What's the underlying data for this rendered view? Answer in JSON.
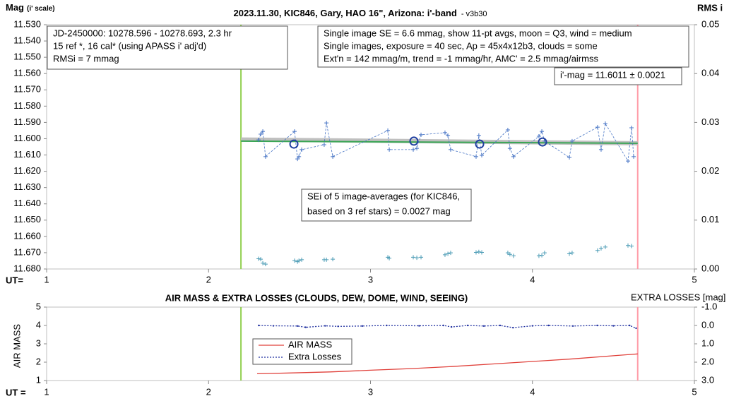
{
  "chart_data": [
    {
      "type": "line",
      "title": "2023.11.30, KIC846, Gary, HAO 16\", Arizona: i'-band",
      "subtitle": "- v3b30",
      "ylabel": "Mag",
      "ylabel_note": "(i' scale)",
      "y2label": "RMS i",
      "xlabel": "UT=",
      "xlim": [
        1,
        5
      ],
      "xticks": [
        1,
        2,
        3,
        4,
        5
      ],
      "ylim": [
        11.68,
        11.53
      ],
      "yticks": [
        {
          "value": 11.53,
          "label": "11.530"
        },
        {
          "value": 11.54,
          "label": "11.540"
        },
        {
          "value": 11.55,
          "label": "11.550"
        },
        {
          "value": 11.56,
          "label": "11.560"
        },
        {
          "value": 11.57,
          "label": "11.570"
        },
        {
          "value": 11.58,
          "label": "11.580"
        },
        {
          "value": 11.59,
          "label": "11.590"
        },
        {
          "value": 11.6,
          "label": "11.600"
        },
        {
          "value": 11.61,
          "label": "11.610"
        },
        {
          "value": 11.62,
          "label": "11.620"
        },
        {
          "value": 11.63,
          "label": "11.630"
        },
        {
          "value": 11.64,
          "label": "11.640"
        },
        {
          "value": 11.65,
          "label": "11.650"
        },
        {
          "value": 11.66,
          "label": "11.660"
        },
        {
          "value": 11.67,
          "label": "11.670"
        },
        {
          "value": 11.68,
          "label": "11.680"
        }
      ],
      "y2lim": [
        0,
        0.05
      ],
      "y2ticks": [
        {
          "value": 0,
          "label": "0.00"
        },
        {
          "value": 0.01,
          "label": "0.01"
        },
        {
          "value": 0.02,
          "label": "0.02"
        },
        {
          "value": 0.03,
          "label": "0.03"
        },
        {
          "value": 0.04,
          "label": "0.04"
        },
        {
          "value": 0.05,
          "label": "0.05"
        }
      ],
      "vlines": [
        2.2,
        4.65
      ],
      "vline_colors": [
        "#92d050",
        "#ff9ca8"
      ],
      "annotations": [
        {
          "lines": [
            "JD-2450000: 10278.596 - 10278.693, 2.3  hr",
            "15 ref *, 16 cal* (using APASS i' adj'd)",
            "RMSi = 7 mmag"
          ]
        },
        {
          "lines": [
            "Single image SE = 6.6 mmag, show 11-pt avgs, moon = Q3, wind = medium",
            "Single images, exposure = 40 sec, Ap = 45x4x12b3, clouds = some",
            "Ext'n = 142 mmag/m, trend = -1 mmag/hr, AMC' = 2.5 mmag/airmss"
          ]
        },
        {
          "lines": [
            "i'-mag = 11.6011 ± 0.0021"
          ]
        },
        {
          "lines": [
            "SEi of 5 image-averages (for KIC846,",
            "based on 3 ref stars) = 0.0027 mag"
          ]
        }
      ],
      "series": [
        {
          "style": "band",
          "color": "#bfbfbf",
          "x": [
            2.2,
            4.65
          ],
          "values": [
            11.6005,
            11.6028
          ]
        },
        {
          "style": "solid",
          "color": "#3aa655",
          "x": [
            2.2,
            4.65
          ],
          "values": [
            11.6015,
            11.6028
          ]
        },
        {
          "style": "dashed-crosses",
          "color": "#4472c4",
          "x": [
            2.309,
            2.322,
            2.335,
            2.352,
            2.531,
            2.549,
            2.558,
            2.575,
            2.714,
            2.728,
            2.767,
            3.107,
            3.116,
            3.264,
            3.286,
            3.312,
            3.46,
            3.478,
            3.495,
            3.652,
            3.669,
            3.687,
            3.848,
            3.861,
            3.883,
            4.04,
            4.058,
            4.075,
            4.228,
            4.245,
            4.402,
            4.424,
            4.45,
            4.59,
            4.612,
            4.625
          ],
          "values": [
            11.6007,
            11.5972,
            11.5955,
            11.611,
            11.5955,
            11.6124,
            11.611,
            11.6067,
            11.6037,
            11.5903,
            11.611,
            11.595,
            11.6067,
            11.6067,
            11.6059,
            11.5976,
            11.5963,
            11.598,
            11.6067,
            11.611,
            11.598,
            11.6102,
            11.5946,
            11.6059,
            11.611,
            11.5985,
            11.5955,
            11.6015,
            11.6115,
            11.6015,
            11.5929,
            11.6067,
            11.5907,
            11.6137,
            11.5933,
            11.611
          ]
        },
        {
          "style": "circles",
          "color": "#1f3fa0",
          "x": [
            2.527,
            3.268,
            3.674,
            4.062
          ],
          "values": [
            11.6033,
            11.6015,
            11.6033,
            11.602
          ]
        },
        {
          "style": "crosses",
          "axis": "y2",
          "color": "#4a9bb5",
          "x": [
            2.309,
            2.322,
            2.335,
            2.352,
            2.531,
            2.549,
            2.558,
            2.575,
            2.714,
            2.728,
            2.767,
            3.107,
            3.116,
            3.264,
            3.286,
            3.312,
            3.46,
            3.478,
            3.495,
            3.652,
            3.669,
            3.687,
            3.848,
            3.861,
            3.883,
            4.04,
            4.058,
            4.075,
            4.228,
            4.245,
            4.402,
            4.424,
            4.45,
            4.59,
            4.612
          ],
          "values": [
            0.0021,
            0.002,
            0.0012,
            0.001,
            0.0017,
            0.0015,
            0.0017,
            0.0019,
            0.0019,
            0.0019,
            0.002,
            0.0024,
            0.0022,
            0.0024,
            0.0023,
            0.0024,
            0.0029,
            0.0031,
            0.0033,
            0.0034,
            0.0035,
            0.0034,
            0.0033,
            0.003,
            0.0027,
            0.0027,
            0.0028,
            0.0033,
            0.0031,
            0.0033,
            0.0038,
            0.0042,
            0.0045,
            0.0048,
            0.0047
          ]
        }
      ]
    },
    {
      "type": "line",
      "title": "AIR MASS & EXTRA LOSSES (CLOUDS, DEW, DOME, WIND, SEEING)",
      "ylabel": "AIR MASS",
      "y2label": "EXTRA LOSSES [mag]",
      "xlabel": "UT =",
      "xlim": [
        1,
        5
      ],
      "xticks": [
        1,
        2,
        3,
        4,
        5
      ],
      "ylim": [
        1,
        5
      ],
      "yticks": [
        1,
        2,
        3,
        4,
        5
      ],
      "y2lim": [
        3,
        -1
      ],
      "y2ticks": [
        {
          "value": -1,
          "label": "-1.0"
        },
        {
          "value": 0,
          "label": "0.0"
        },
        {
          "value": 1,
          "label": "1.0"
        },
        {
          "value": 2,
          "label": "2.0"
        },
        {
          "value": 3,
          "label": "3.0"
        }
      ],
      "vlines": [
        2.2,
        4.65
      ],
      "vline_colors": [
        "#92d050",
        "#ff9ca8"
      ],
      "series": [
        {
          "name": "AIR MASS",
          "style": "solid",
          "color": "#e0403a",
          "x": [
            2.3,
            2.5,
            2.75,
            3.0,
            3.25,
            3.5,
            3.75,
            4.0,
            4.25,
            4.5,
            4.65
          ],
          "values": [
            1.37,
            1.41,
            1.47,
            1.56,
            1.65,
            1.76,
            1.9,
            2.04,
            2.18,
            2.35,
            2.45
          ]
        },
        {
          "name": "Extra Losses",
          "style": "dotted",
          "axis": "y2",
          "color": "#1f2f9f",
          "x": [
            2.31,
            2.4,
            2.55,
            2.6,
            2.72,
            2.8,
            2.95,
            3.1,
            3.3,
            3.45,
            3.5,
            3.6,
            3.7,
            3.8,
            3.88,
            4.0,
            4.1,
            4.25,
            4.4,
            4.5,
            4.6,
            4.64
          ],
          "values": [
            0.0,
            0.02,
            0.03,
            0.1,
            0.02,
            0.05,
            0.03,
            0.0,
            0.02,
            0.0,
            0.08,
            0.0,
            0.03,
            0.0,
            0.12,
            0.02,
            0.0,
            0.03,
            0.0,
            0.02,
            0.0,
            0.15
          ]
        }
      ]
    }
  ]
}
